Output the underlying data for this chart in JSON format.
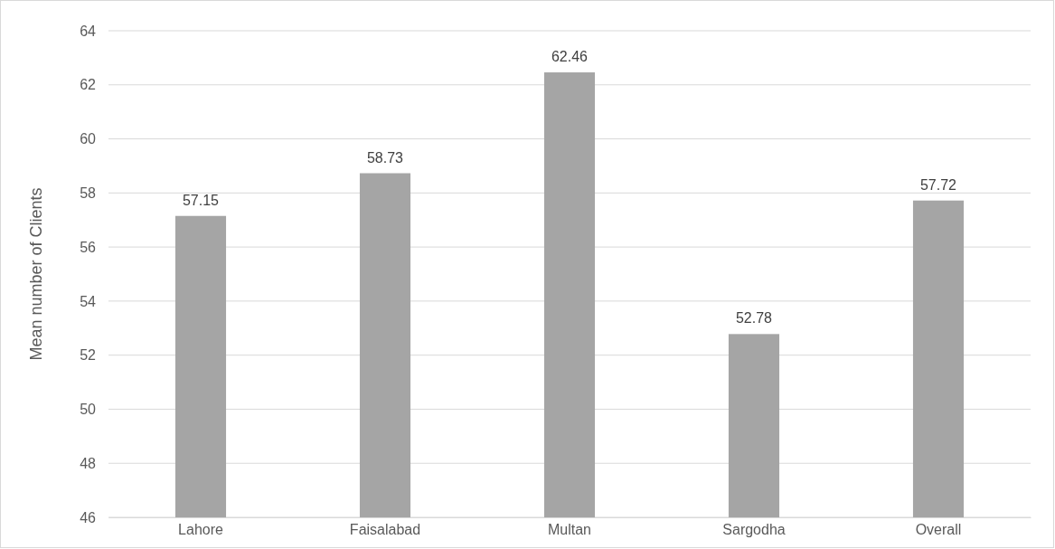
{
  "chart_data": {
    "type": "bar",
    "ylabel": "Mean number of Clients",
    "categories": [
      "Lahore",
      "Faisalabad",
      "Multan",
      "Sargodha",
      "Overall"
    ],
    "values": [
      57.15,
      58.73,
      62.46,
      52.78,
      57.72
    ],
    "color": "#a5a5a5",
    "ylim": [
      46,
      64
    ],
    "yticks": [
      46,
      48,
      50,
      52,
      54,
      56,
      58,
      60,
      62,
      64
    ],
    "grid": "y",
    "data_labels": true
  }
}
